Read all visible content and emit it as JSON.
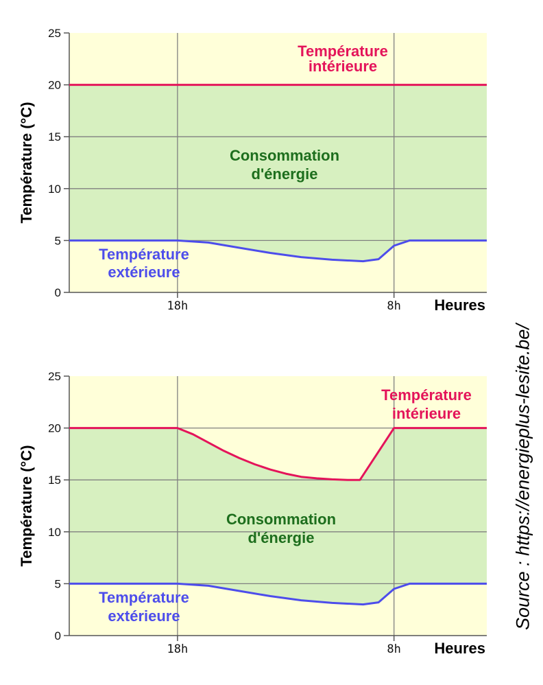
{
  "source_text": "Source : https://energieplus-lesite.be/",
  "chart_data": [
    {
      "type": "line",
      "ylabel": "Température (°C)",
      "xlabel": "Heures",
      "ylim": [
        0,
        25
      ],
      "yticks": [
        0,
        5,
        10,
        15,
        20,
        25
      ],
      "x_ticks": [
        {
          "label": "18h",
          "x": 18
        },
        {
          "label": "8h",
          "x": 32
        }
      ],
      "xlim": [
        11,
        38
      ],
      "grid": true,
      "colors": {
        "background": "#FFFFD9",
        "fill": "#D7F0C0",
        "interior": "#E4145A",
        "exterior": "#4D4DEB",
        "consumption": "#1D6E1D",
        "grid": "#808080"
      },
      "series": [
        {
          "name": "Température intérieure",
          "key": "interior",
          "points": [
            [
              11,
              20
            ],
            [
              18,
              20
            ],
            [
              32,
              20
            ],
            [
              38,
              20
            ]
          ]
        },
        {
          "name": "Température extérieure",
          "key": "exterior",
          "points": [
            [
              11,
              5
            ],
            [
              18,
              5
            ],
            [
              20,
              4.8
            ],
            [
              22,
              4.3
            ],
            [
              24,
              3.8
            ],
            [
              26,
              3.4
            ],
            [
              28,
              3.15
            ],
            [
              30,
              3.0
            ],
            [
              31,
              3.2
            ],
            [
              32,
              4.5
            ],
            [
              33,
              5
            ],
            [
              38,
              5
            ]
          ]
        }
      ],
      "annotations": {
        "interior": [
          "Température",
          "intérieure"
        ],
        "exterior": [
          "Température",
          "extérieure"
        ],
        "consumption": [
          "Consommation",
          "d'énergie"
        ]
      }
    },
    {
      "type": "line",
      "ylabel": "Température (°C)",
      "xlabel": "Heures",
      "ylim": [
        0,
        25
      ],
      "yticks": [
        0,
        5,
        10,
        15,
        20,
        25
      ],
      "x_ticks": [
        {
          "label": "18h",
          "x": 18
        },
        {
          "label": "8h",
          "x": 32
        }
      ],
      "xlim": [
        11,
        38
      ],
      "grid": true,
      "colors": {
        "background": "#FFFFD9",
        "fill": "#D7F0C0",
        "interior": "#E4145A",
        "exterior": "#4D4DEB",
        "consumption": "#1D6E1D",
        "grid": "#808080"
      },
      "series": [
        {
          "name": "Température intérieure",
          "key": "interior",
          "points": [
            [
              11,
              20
            ],
            [
              18,
              20
            ],
            [
              19,
              19.4
            ],
            [
              20,
              18.6
            ],
            [
              21,
              17.8
            ],
            [
              22,
              17.1
            ],
            [
              23,
              16.5
            ],
            [
              24,
              16.0
            ],
            [
              25,
              15.6
            ],
            [
              26,
              15.3
            ],
            [
              27,
              15.15
            ],
            [
              28,
              15.05
            ],
            [
              29,
              15.0
            ],
            [
              29.8,
              15.0
            ],
            [
              32,
              20
            ],
            [
              38,
              20
            ]
          ]
        },
        {
          "name": "Température extérieure",
          "key": "exterior",
          "points": [
            [
              11,
              5
            ],
            [
              18,
              5
            ],
            [
              20,
              4.8
            ],
            [
              22,
              4.3
            ],
            [
              24,
              3.8
            ],
            [
              26,
              3.4
            ],
            [
              28,
              3.15
            ],
            [
              30,
              3.0
            ],
            [
              31,
              3.2
            ],
            [
              32,
              4.5
            ],
            [
              33,
              5
            ],
            [
              38,
              5
            ]
          ]
        }
      ],
      "annotations": {
        "interior": [
          "Température",
          "intérieure"
        ],
        "exterior": [
          "Température",
          "extérieure"
        ],
        "consumption": [
          "Consommation",
          "d'énergie"
        ]
      }
    }
  ]
}
